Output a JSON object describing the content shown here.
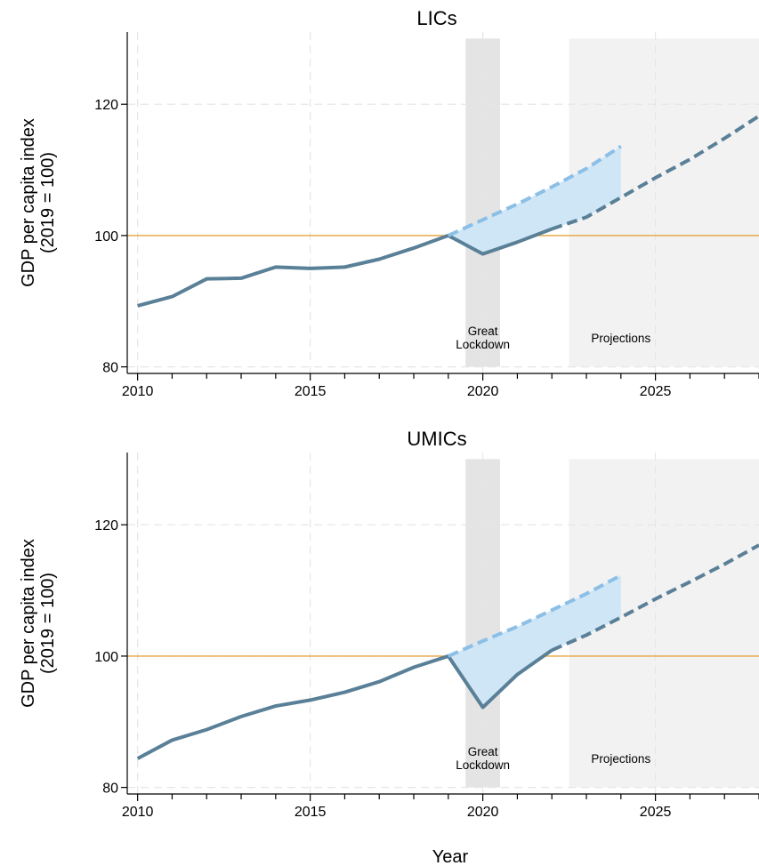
{
  "chart_data": [
    {
      "type": "line",
      "title": "LICs",
      "ylabel_line1": "GDP per capita index",
      "ylabel_line2": "(2019 = 100)",
      "xlabel": "",
      "xlim": [
        2009.7,
        2028
      ],
      "ylim": [
        79,
        131
      ],
      "xticks": [
        2010,
        2015,
        2020,
        2025
      ],
      "yticks": [
        80,
        100,
        120
      ],
      "reference_line": 100,
      "reference_color": "#e8a33d",
      "shaded_regions": [
        {
          "label_line1": "Great",
          "label_line2": "Lockdown",
          "x0": 2019.5,
          "x1": 2020.5,
          "color": "#e4e4e4"
        },
        {
          "label_line1": "",
          "label_line2": "Projections",
          "x0": 2022.5,
          "x1": 2028,
          "color": "#f2f2f2"
        }
      ],
      "fill_color": "#cfe6f6",
      "series": [
        {
          "style": "solid",
          "color": "#5a8098",
          "x": [
            2010,
            2011,
            2012,
            2013,
            2014,
            2015,
            2016,
            2017,
            2018,
            2019,
            2020,
            2021,
            2022
          ],
          "y": [
            89.3,
            90.7,
            93.4,
            93.5,
            95.2,
            95.0,
            95.2,
            96.4,
            98.1,
            100.0,
            97.2,
            99.0,
            101.0
          ]
        },
        {
          "style": "dashed",
          "color": "#5a8098",
          "x": [
            2022,
            2023,
            2024,
            2025,
            2026,
            2027,
            2028
          ],
          "y": [
            101.0,
            102.8,
            105.8,
            108.8,
            111.6,
            114.8,
            118.2
          ]
        },
        {
          "style": "dashed",
          "color": "#8cbfe6",
          "x": [
            2019,
            2020,
            2021,
            2022,
            2023,
            2024
          ],
          "y": [
            100.0,
            102.4,
            104.8,
            107.4,
            110.2,
            113.6
          ]
        }
      ]
    },
    {
      "type": "line",
      "title": "UMICs",
      "ylabel_line1": "GDP per capita index",
      "ylabel_line2": "(2019 = 100)",
      "xlabel": "Year",
      "xlim": [
        2009.7,
        2028
      ],
      "ylim": [
        79,
        131
      ],
      "xticks": [
        2010,
        2015,
        2020,
        2025
      ],
      "yticks": [
        80,
        100,
        120
      ],
      "reference_line": 100,
      "reference_color": "#e8a33d",
      "shaded_regions": [
        {
          "label_line1": "Great",
          "label_line2": "Lockdown",
          "x0": 2019.5,
          "x1": 2020.5,
          "color": "#e4e4e4"
        },
        {
          "label_line1": "",
          "label_line2": "Projections",
          "x0": 2022.5,
          "x1": 2028,
          "color": "#f2f2f2"
        }
      ],
      "fill_color": "#cfe6f6",
      "series": [
        {
          "style": "solid",
          "color": "#5a8098",
          "x": [
            2010,
            2011,
            2012,
            2013,
            2014,
            2015,
            2016,
            2017,
            2018,
            2019,
            2020,
            2021,
            2022
          ],
          "y": [
            84.4,
            87.2,
            88.8,
            90.8,
            92.4,
            93.3,
            94.5,
            96.1,
            98.3,
            100.0,
            92.2,
            97.2,
            100.9
          ]
        },
        {
          "style": "dashed",
          "color": "#5a8098",
          "x": [
            2022,
            2023,
            2024,
            2025,
            2026,
            2027,
            2028
          ],
          "y": [
            100.9,
            103.2,
            105.9,
            108.7,
            111.3,
            114.0,
            116.9
          ]
        },
        {
          "style": "dashed",
          "color": "#8cbfe6",
          "x": [
            2019,
            2020,
            2021,
            2022,
            2023,
            2024
          ],
          "y": [
            100.0,
            102.3,
            104.5,
            107.0,
            109.5,
            112.3
          ]
        }
      ]
    }
  ]
}
